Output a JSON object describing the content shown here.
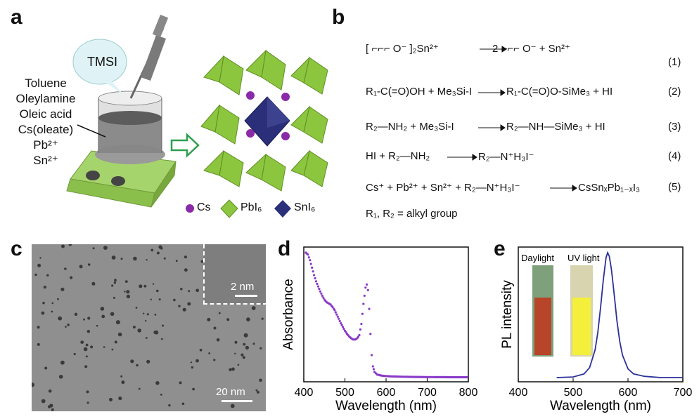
{
  "panels": {
    "a": "a",
    "b": "b",
    "c": "c",
    "d": "d",
    "e": "e"
  },
  "a": {
    "bubble": "TMSI",
    "solution_lines": [
      "Toluene",
      "Oleylamine",
      "Oleic acid",
      "Cs(oleate)",
      "Pb²⁺",
      "Sn²⁺"
    ],
    "legend": [
      {
        "label": "Cs",
        "color": "#8a2aa8"
      },
      {
        "label": "PbI₆",
        "color": "#8cc63f"
      },
      {
        "label": "SnI₆",
        "color": "#2b2f7a"
      }
    ],
    "colors": {
      "octahedron": "#8cc63f",
      "center_octahedron": "#2b2f7a",
      "cs_atom": "#8a2aa8",
      "arrow": "#2e9e4f"
    }
  },
  "b": {
    "reactions": [
      {
        "lhs": "[ ⌐⌐⌐ O⁻ ]₂Sn²⁺",
        "rhs": "2 ⌐⌐⌐ O⁻ + Sn²⁺",
        "num": "(1)"
      },
      {
        "lhs": "R₁‑C(=O)OH + Me₃Si‑I",
        "rhs": "R₁‑C(=O)O‑SiMe₃ + HI",
        "num": "(2)"
      },
      {
        "lhs": "R₂—NH₂ + Me₃Si‑I",
        "rhs": "R₂—NH—SiMe₃ + HI",
        "num": "(3)"
      },
      {
        "lhs": "HI + R₂—NH₂",
        "rhs": "R₂—N⁺H₃I⁻",
        "num": "(4)"
      },
      {
        "lhs": "Cs⁺ + Pb²⁺ + Sn²⁺ + R₂—N⁺H₃I⁻",
        "rhs": "CsSnₓPb₁₋ₓI₃",
        "num": "(5)"
      }
    ],
    "note": "R₁, R₂ = alkyl group"
  },
  "c": {
    "scale_main": "20 nm",
    "scale_inset": "2 nm"
  },
  "chart_data": [
    {
      "type": "scatter",
      "panel": "d",
      "title": "",
      "xlabel": "Wavelength (nm)",
      "ylabel": "Absorbance",
      "xlim": [
        400,
        800
      ],
      "xticks": [
        400,
        500,
        600,
        700,
        800
      ],
      "yticks_shown": false,
      "color": "#8a3ac8",
      "points": [
        [
          405,
          1.0
        ],
        [
          410,
          0.985
        ],
        [
          415,
          0.94
        ],
        [
          420,
          0.88
        ],
        [
          425,
          0.82
        ],
        [
          430,
          0.77
        ],
        [
          435,
          0.73
        ],
        [
          440,
          0.69
        ],
        [
          445,
          0.655
        ],
        [
          450,
          0.625
        ],
        [
          455,
          0.605
        ],
        [
          460,
          0.595
        ],
        [
          465,
          0.585
        ],
        [
          470,
          0.565
        ],
        [
          475,
          0.54
        ],
        [
          480,
          0.505
        ],
        [
          485,
          0.47
        ],
        [
          490,
          0.435
        ],
        [
          495,
          0.405
        ],
        [
          500,
          0.375
        ],
        [
          505,
          0.35
        ],
        [
          510,
          0.33
        ],
        [
          515,
          0.315
        ],
        [
          520,
          0.305
        ],
        [
          525,
          0.305
        ],
        [
          530,
          0.315
        ],
        [
          535,
          0.34
        ],
        [
          540,
          0.43
        ],
        [
          545,
          0.59
        ],
        [
          550,
          0.72
        ],
        [
          553,
          0.745
        ],
        [
          556,
          0.7
        ],
        [
          559,
          0.55
        ],
        [
          562,
          0.35
        ],
        [
          565,
          0.18
        ],
        [
          568,
          0.09
        ],
        [
          572,
          0.045
        ],
        [
          578,
          0.025
        ],
        [
          590,
          0.015
        ],
        [
          610,
          0.01
        ],
        [
          650,
          0.006
        ],
        [
          700,
          0.004
        ],
        [
          750,
          0.003
        ],
        [
          800,
          0.003
        ]
      ]
    },
    {
      "type": "line",
      "panel": "e",
      "title": "",
      "xlabel": "Wavelength (nm)",
      "ylabel": "PL intensity",
      "xlim": [
        400,
        700
      ],
      "xticks": [
        400,
        500,
        600,
        700
      ],
      "yticks_shown": false,
      "color": "#2b2f9a",
      "peak_nm": 562,
      "points": [
        [
          470,
          0.0
        ],
        [
          500,
          0.005
        ],
        [
          520,
          0.03
        ],
        [
          530,
          0.08
        ],
        [
          540,
          0.22
        ],
        [
          545,
          0.36
        ],
        [
          550,
          0.56
        ],
        [
          555,
          0.78
        ],
        [
          560,
          0.96
        ],
        [
          563,
          1.0
        ],
        [
          566,
          0.97
        ],
        [
          570,
          0.86
        ],
        [
          575,
          0.66
        ],
        [
          580,
          0.45
        ],
        [
          585,
          0.29
        ],
        [
          590,
          0.18
        ],
        [
          600,
          0.07
        ],
        [
          610,
          0.03
        ],
        [
          630,
          0.01
        ],
        [
          660,
          0.0
        ],
        [
          700,
          0.0
        ]
      ],
      "insets": [
        "Daylight",
        "UV light"
      ]
    }
  ]
}
